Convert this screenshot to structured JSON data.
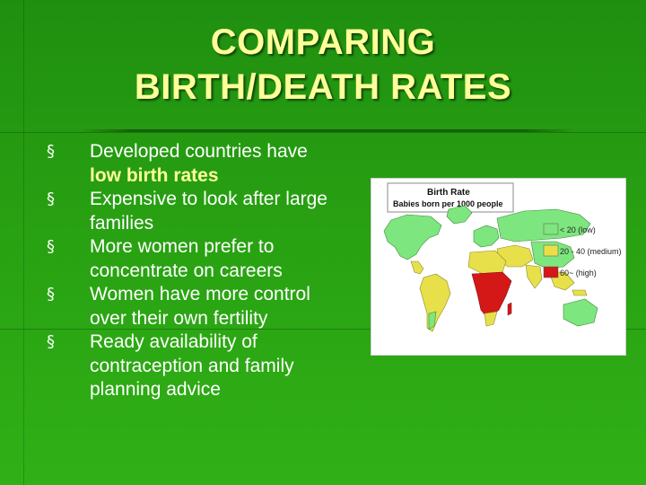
{
  "slide": {
    "title_line1": "COMPARING",
    "title_line2": "BIRTH/DEATH RATES",
    "bullet_glyph": "§",
    "bullets": [
      {
        "text": "Developed countries have ",
        "highlight": "low birth rates"
      },
      {
        "text": "Expensive to look after large families"
      },
      {
        "text": "More women prefer to concentrate on careers"
      },
      {
        "text": "Women have more control over their own fertility"
      },
      {
        "text": "Ready availability of contraception and family planning advice"
      }
    ]
  },
  "map": {
    "title": "Birth Rate",
    "subtitle": "Babies born per 1000 people",
    "legend": [
      {
        "label": "< 20 (low)",
        "color": "#7ee67e"
      },
      {
        "label": "20 - 40 (medium)",
        "color": "#e8e04a"
      },
      {
        "label": "60~ (high)",
        "color": "#d41818"
      }
    ]
  },
  "colors": {
    "title": "#ffff99",
    "highlight": "#ffff99",
    "body_text": "#ffffff",
    "background": "#28a012"
  }
}
